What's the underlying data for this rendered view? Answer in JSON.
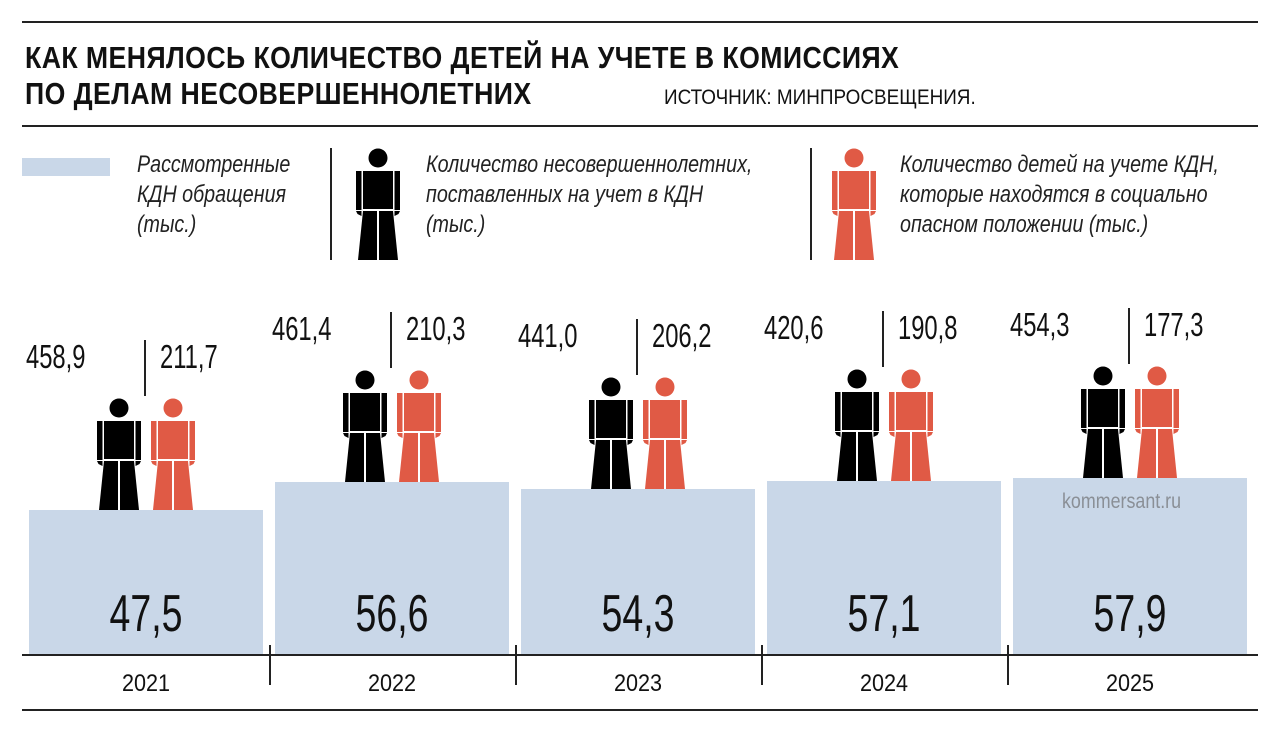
{
  "title": {
    "line1": "КАК МЕНЯЛОСЬ КОЛИЧЕСТВО ДЕТЕЙ НА УЧЕТЕ В КОМИССИЯХ",
    "line2": "ПО ДЕЛАМ НЕСОВЕРШЕННОЛЕТНИХ",
    "source": "ИСТОЧНИК: МИНПРОСВЕЩЕНИЯ."
  },
  "legend": [
    {
      "lines": [
        "Рассмотренные",
        "КДН обращения",
        "(тыс.)"
      ],
      "marker": "bar",
      "color": "#c9d7e8"
    },
    {
      "lines": [
        "Количество несовершеннолетних,",
        "поставленных на учет в КДН",
        "(тыс.)"
      ],
      "marker": "person-icon",
      "color": "#000000"
    },
    {
      "lines": [
        "Количество детей на учете КДН,",
        "которые находятся в социально",
        "опасном положении (тыс.)"
      ],
      "marker": "person-icon",
      "color": "#e05a45"
    }
  ],
  "watermark": "kommersant.ru",
  "chart_data": {
    "type": "bar",
    "categories": [
      "2021",
      "2022",
      "2023",
      "2024",
      "2025"
    ],
    "series": [
      {
        "name": "Рассмотренные КДН обращения (тыс.)",
        "values": [
          47.5,
          56.6,
          54.3,
          57.1,
          57.9
        ],
        "labels": [
          "47,5",
          "56,6",
          "54,3",
          "57,1",
          "57,9"
        ],
        "color": "#c9d7e8"
      },
      {
        "name": "Количество несовершеннолетних, поставленных на учет в КДН (тыс.)",
        "values": [
          458.9,
          461.4,
          441.0,
          420.6,
          454.3
        ],
        "labels": [
          "458,9",
          "461,4",
          "441,0",
          "420,6",
          "454,3"
        ],
        "color": "#000000"
      },
      {
        "name": "Количество детей на учете КДН, которые находятся в социально опасном положении (тыс.)",
        "values": [
          211.7,
          210.3,
          206.2,
          190.8,
          177.3
        ],
        "labels": [
          "211,7",
          "210,3",
          "206,2",
          "190,8",
          "177,3"
        ],
        "color": "#e05a45"
      }
    ]
  }
}
